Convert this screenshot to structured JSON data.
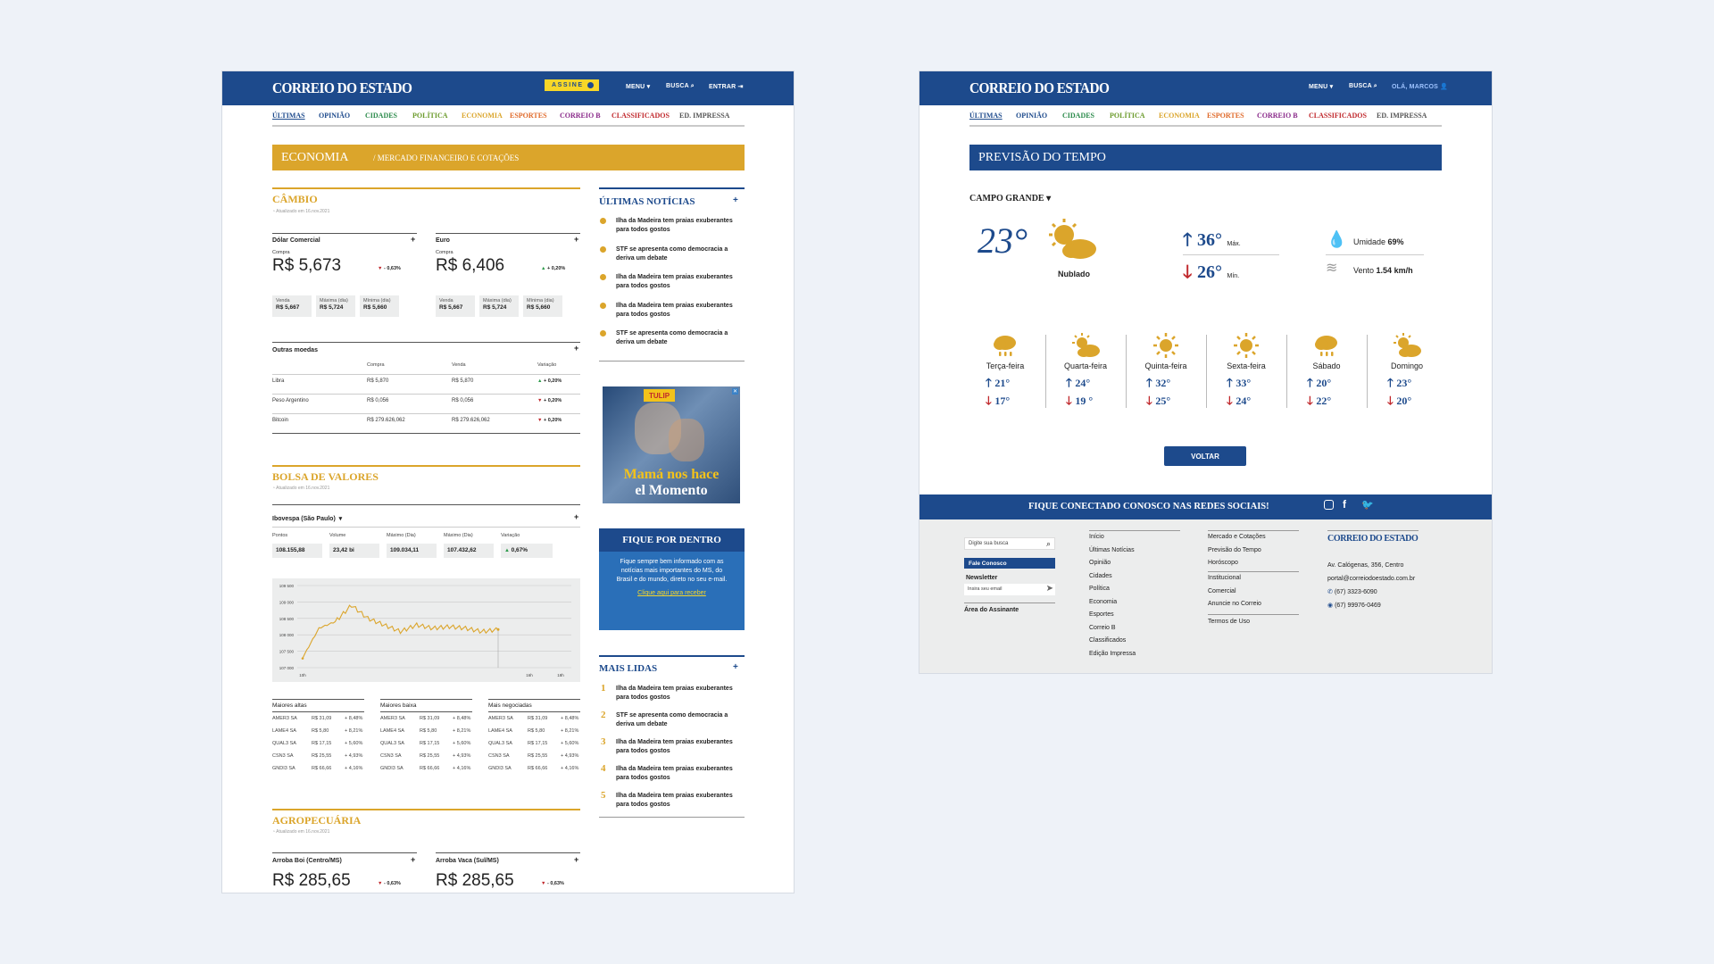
{
  "site": {
    "logo": "CORREIO DO ESTADO"
  },
  "page1": {
    "header": {
      "assine": "ASSINE",
      "menu": "MENU",
      "busca": "BUSCA",
      "entrar": "ENTRAR"
    },
    "categories": [
      {
        "label": "ÚLTIMAS",
        "color": "#1d4a8c"
      },
      {
        "label": "OPINIÃO",
        "color": "#1d4a8c"
      },
      {
        "label": "CIDADES",
        "color": "#2a8a4a"
      },
      {
        "label": "POLÍTICA",
        "color": "#6a9a2a"
      },
      {
        "label": "ECONOMIA",
        "color": "#dba52b"
      },
      {
        "label": "ESPORTES",
        "color": "#e06a2a"
      },
      {
        "label": "CORREIO B",
        "color": "#8a2a8a"
      },
      {
        "label": "CLASSIFICADOS",
        "color": "#c0282c"
      },
      {
        "label": "ED. IMPRESSA",
        "color": "#555555"
      }
    ],
    "banner": {
      "section": "ECONOMIA",
      "sub": "/ MERCADO FINANCEIRO E COTAÇÕES"
    },
    "cambio": {
      "title": "CÂMBIO",
      "updated": "Atualizado em 16.nov.2021",
      "currencies": [
        {
          "name": "Dólar Comercial",
          "compra_label": "Compra",
          "value": "R$ 5,673",
          "change": "- 0,63%",
          "dir": "down",
          "stats": [
            {
              "k": "Venda",
              "v": "R$ 5,667"
            },
            {
              "k": "Máxima (dia)",
              "v": "R$ 5,724"
            },
            {
              "k": "Mínima (dia)",
              "v": "R$ 5,660"
            }
          ]
        },
        {
          "name": "Euro",
          "compra_label": "Compra",
          "value": "R$ 6,406",
          "change": "+ 0,20%",
          "dir": "up",
          "stats": [
            {
              "k": "Venda",
              "v": "R$ 5,667"
            },
            {
              "k": "Máxima (dia)",
              "v": "R$ 5,724"
            },
            {
              "k": "Mínima (dia)",
              "v": "R$ 5,660"
            }
          ]
        }
      ],
      "outras": {
        "title": "Outras moedas",
        "headers": [
          "Compra",
          "Venda",
          "Variação"
        ],
        "rows": [
          {
            "name": "Libra",
            "compra": "R$ 5,870",
            "venda": "R$ 5,870",
            "var": "+ 0,20%",
            "dir": "up"
          },
          {
            "name": "Peso Argentino",
            "compra": "R$ 0,056",
            "venda": "R$ 0,056",
            "var": "+ 0,20%",
            "dir": "down"
          },
          {
            "name": "Bitcoin",
            "compra": "R$ 279.626,062",
            "venda": "R$ 279.626,062",
            "var": "+ 0,20%",
            "dir": "down"
          }
        ]
      }
    },
    "bolsa": {
      "title": "BOLSA DE VALORES",
      "updated": "Atualizado em 16.nov.2021",
      "index": "Ibovespa (São Paulo)",
      "stats": [
        {
          "k": "Pontos",
          "v": "108.155,88"
        },
        {
          "k": "Volume",
          "v": "23,42 bi"
        },
        {
          "k": "Máximo (Dia)",
          "v": "109.034,11"
        },
        {
          "k": "Máximo (Dia)",
          "v": "107.432,62"
        },
        {
          "k": "Variação",
          "v": "0,67%"
        }
      ],
      "tables": [
        {
          "title": "Maiores altas",
          "rows": [
            [
              "AMER3 SA",
              "R$ 31,09",
              "+ 8,48%"
            ],
            [
              "LAME4 SA",
              "R$ 5,80",
              "+ 8,21%"
            ],
            [
              "QUAL3 SA",
              "R$ 17,15",
              "+ 5,60%"
            ],
            [
              "CSN3 SA",
              "R$ 25,55",
              "+ 4,93%"
            ],
            [
              "GNDI3 SA",
              "R$ 66,66",
              "+ 4,16%"
            ]
          ]
        },
        {
          "title": "Maiores baixa",
          "rows": [
            [
              "AMER3 SA",
              "R$ 31,09",
              "+ 8,48%"
            ],
            [
              "LAME4 SA",
              "R$ 5,80",
              "+ 8,21%"
            ],
            [
              "QUAL3 SA",
              "R$ 17,15",
              "+ 5,60%"
            ],
            [
              "CSN3 SA",
              "R$ 25,55",
              "+ 4,93%"
            ],
            [
              "GNDI3 SA",
              "R$ 66,66",
              "+ 4,16%"
            ]
          ]
        },
        {
          "title": "Mais negociadas",
          "rows": [
            [
              "AMER3 SA",
              "R$ 31,09",
              "+ 8,48%"
            ],
            [
              "LAME4 SA",
              "R$ 5,80",
              "+ 8,21%"
            ],
            [
              "QUAL3 SA",
              "R$ 17,15",
              "+ 5,60%"
            ],
            [
              "CSN3 SA",
              "R$ 25,55",
              "+ 4,93%"
            ],
            [
              "GNDI3 SA",
              "R$ 66,66",
              "+ 4,16%"
            ]
          ]
        }
      ]
    },
    "agro": {
      "title": "AGROPECUÁRIA",
      "updated": "Atualizado em 16.nov.2021",
      "items": [
        {
          "name": "Arroba Boi (Centro/MS)",
          "value": "R$ 285,65",
          "change": "- 0,63%"
        },
        {
          "name": "Arroba Vaca (Sul/MS)",
          "value": "R$ 285,65",
          "change": "- 0,63%"
        }
      ]
    },
    "ultimas": {
      "title": "ÚLTIMAS NOTÍCIAS",
      "items": [
        "Ilha da Madeira tem praias exuberantes para todos gostos",
        "STF se apresenta como democracia a deriva um debate",
        "Ilha da Madeira tem praias exuberantes para todos gostos",
        "Ilha da Madeira tem praias exuberantes para todos gostos",
        "STF se apresenta como democracia a deriva um debate"
      ]
    },
    "ad": {
      "brand": "TULIP",
      "line1": "Mamá nos hace",
      "line2": "el Momento"
    },
    "newsletter": {
      "title": "FIQUE POR DENTRO",
      "text": "Fique sempre bem informado com as notícias mais importantes do MS, do Brasil e do mundo, direto no seu e-mail.",
      "link": "Clique aqui para receber"
    },
    "mais_lidas": {
      "title": "MAIS LIDAS",
      "items": [
        "Ilha da Madeira tem praias exuberantes para todos gostos",
        "STF se apresenta como democracia a deriva um debate",
        "Ilha da Madeira tem praias exuberantes para todos gostos",
        "Ilha da Madeira tem praias exuberantes para todos gostos",
        "Ilha da Madeira tem praias exuberantes para todos gostos"
      ]
    }
  },
  "chart_data": {
    "type": "line",
    "title": "",
    "x_ticks": [
      "10h",
      "16h",
      "18h"
    ],
    "y_ticks": [
      "109 500",
      "109 000",
      "108 500",
      "108 000",
      "107 500",
      "107 000"
    ],
    "ylim": [
      107000,
      109500
    ],
    "series": [
      {
        "color": "#dba52b",
        "x": [
          0,
          0.5,
          1,
          1.5,
          2,
          2.5,
          3,
          3.5,
          4,
          4.5,
          5,
          5.5,
          6
        ],
        "values": [
          107300,
          108200,
          108400,
          108900,
          108500,
          108300,
          108100,
          108300,
          108200,
          108250,
          108200,
          108100,
          108160
        ]
      }
    ]
  },
  "page2": {
    "header": {
      "menu": "MENU",
      "busca": "BUSCA",
      "user": "OLÁ, MARCOS"
    },
    "categories": [
      {
        "label": "ÚLTIMAS",
        "color": "#1d4a8c"
      },
      {
        "label": "OPINIÃO",
        "color": "#1d4a8c"
      },
      {
        "label": "CIDADES",
        "color": "#2a8a4a"
      },
      {
        "label": "POLÍTICA",
        "color": "#6a9a2a"
      },
      {
        "label": "ECONOMIA",
        "color": "#dba52b"
      },
      {
        "label": "ESPORTES",
        "color": "#e06a2a"
      },
      {
        "label": "CORREIO B",
        "color": "#8a2a8a"
      },
      {
        "label": "CLASSIFICADOS",
        "color": "#c0282c"
      },
      {
        "label": "ED. IMPRESSA",
        "color": "#555555"
      }
    ],
    "weather": {
      "title": "PREVISÃO DO TEMPO",
      "city": "CAMPO GRANDE",
      "current": {
        "temp": "23°",
        "cond": "Nublado",
        "max": "36°",
        "max_label": "Máx.",
        "min": "26°",
        "min_label": "Mín.",
        "humidity_label": "Umidade",
        "humidity": "69%",
        "wind_label": "Vento",
        "wind": "1.54 km/h"
      },
      "days": [
        {
          "day": "Terça-feira",
          "icon": "rain-icon",
          "max": "21°",
          "min": "17°"
        },
        {
          "day": "Quarta-feira",
          "icon": "partly-cloudy-icon",
          "max": "24°",
          "min": "19 °"
        },
        {
          "day": "Quinta-feira",
          "icon": "sun-icon",
          "max": "32°",
          "min": "25°"
        },
        {
          "day": "Sexta-feira",
          "icon": "sun-icon",
          "max": "33°",
          "min": "24°"
        },
        {
          "day": "Sábado",
          "icon": "rain-icon",
          "max": "20°",
          "min": "22°"
        },
        {
          "day": "Domingo",
          "icon": "partly-cloudy-icon",
          "max": "23°",
          "min": "20°"
        }
      ],
      "back": "VOLTAR"
    },
    "social": {
      "text": "FIQUE CONECTADO CONOSCO NAS REDES SOCIAIS!"
    },
    "footer": {
      "search_placeholder": "Digite sua busca",
      "contact": "Fale Conosco",
      "newsletter": "Newsletter",
      "email_placeholder": "Insira seu email",
      "subscriber": "Área do Assinante",
      "col1": [
        "Início",
        "Últimas Notícias",
        "Opinião",
        "Cidades",
        "Política",
        "Economia",
        "Esportes",
        "Correio B",
        "Classificados",
        "Edição Impressa"
      ],
      "col2a": [
        "Mercado e Cotações",
        "Previsão do Tempo",
        "Horóscopo"
      ],
      "col2b": [
        "Institucional",
        "Comercial",
        "Anuncie no Correio"
      ],
      "col2c": [
        "Termos de Uso"
      ],
      "address": "Av. Calógenas, 356, Centro",
      "email": "portal@correiodoestado.com.br",
      "phone": "(67) 3323-6090",
      "whatsapp": "(67) 99976-0469"
    }
  }
}
